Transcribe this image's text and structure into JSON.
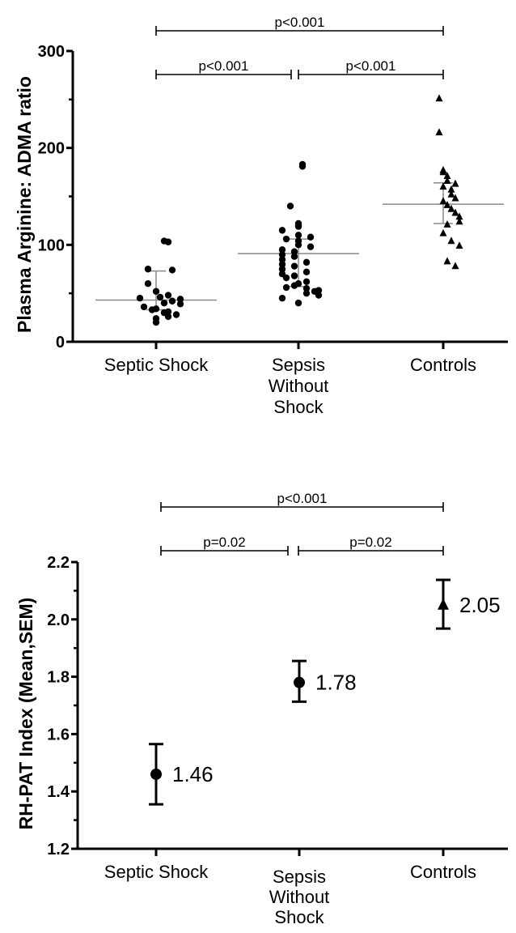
{
  "chart_data": [
    {
      "type": "scatter",
      "ylabel": "Plasma Arginine: ADMA ratio",
      "ylim": [
        0,
        300
      ],
      "yticks": [
        "0",
        "100",
        "200",
        "300"
      ],
      "categories": [
        "Septic Shock",
        "Sepsis\nWithout\nShock",
        "Controls"
      ],
      "series": [
        {
          "marker": "circle",
          "values": [
            104,
            103,
            75,
            74,
            60,
            52,
            48,
            46,
            45,
            44,
            42,
            40,
            39,
            36,
            34,
            33,
            31,
            30,
            28,
            26,
            24,
            20
          ],
          "median": 43,
          "iqr": [
            33,
            73
          ]
        },
        {
          "marker": "circle",
          "values": [
            183,
            181,
            140,
            122,
            120,
            119,
            115,
            110,
            108,
            106,
            104,
            100,
            98,
            95,
            93,
            90,
            88,
            85,
            82,
            80,
            78,
            75,
            72,
            70,
            68,
            66,
            62,
            60,
            58,
            56,
            55,
            53,
            52,
            50,
            48,
            45,
            40
          ],
          "median": 91,
          "iqr": [
            57,
            106
          ]
        },
        {
          "marker": "triangle",
          "values": [
            251,
            216,
            177,
            175,
            171,
            166,
            163,
            160,
            157,
            152,
            148,
            145,
            141,
            137,
            133,
            129,
            124,
            121,
            112,
            104,
            99,
            83,
            78
          ],
          "median": 142,
          "iqr": [
            122,
            164
          ]
        }
      ],
      "comparisons": [
        {
          "from": 0,
          "to": 2,
          "label": "p<0.001"
        },
        {
          "from": 0,
          "to": 1,
          "label": "p<0.001"
        },
        {
          "from": 1,
          "to": 2,
          "label": "p<0.001"
        }
      ]
    },
    {
      "type": "scatter",
      "ylabel": "RH-PAT Index (Mean,SEM)",
      "ylim": [
        1.2,
        2.2
      ],
      "yticks": [
        "1.2",
        "1.4",
        "1.6",
        "1.8",
        "2.0",
        "2.2"
      ],
      "categories": [
        "Septic Shock",
        "Sepsis\nWithout\nShock",
        "Controls"
      ],
      "series": [
        {
          "marker": "circle",
          "mean": 1.46,
          "lower": 1.355,
          "upper": 1.565,
          "label": "1.46"
        },
        {
          "marker": "circle",
          "mean": 1.78,
          "lower": 1.713,
          "upper": 1.855,
          "label": "1.78"
        },
        {
          "marker": "triangle",
          "mean": 2.05,
          "lower": 1.968,
          "upper": 2.138,
          "label": "2.05"
        }
      ],
      "comparisons": [
        {
          "from": 0,
          "to": 2,
          "label": "p<0.001"
        },
        {
          "from": 0,
          "to": 1,
          "label": "p=0.02"
        },
        {
          "from": 1,
          "to": 2,
          "label": "p=0.02"
        }
      ]
    }
  ]
}
